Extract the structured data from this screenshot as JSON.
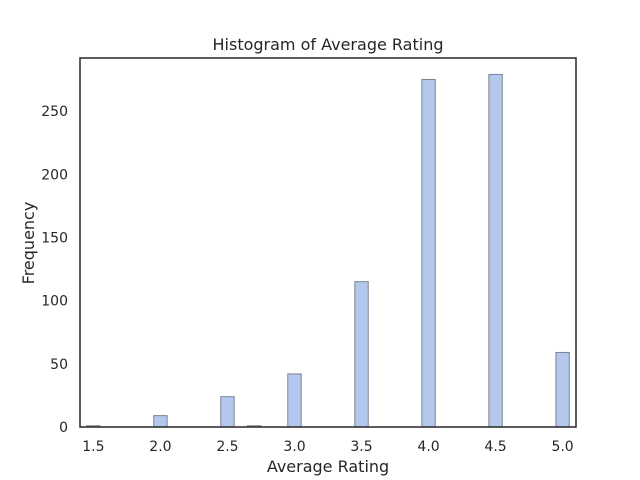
{
  "chart_data": {
    "type": "bar",
    "title": "Histogram of Average Rating",
    "xlabel": "Average Rating",
    "ylabel": "Frequency",
    "xlim": [
      1.4,
      5.1
    ],
    "ylim": [
      0,
      292
    ],
    "x_ticks": [
      "1.5",
      "2.0",
      "2.5",
      "3.0",
      "3.5",
      "4.0",
      "4.5",
      "5.0"
    ],
    "y_ticks": [
      "0",
      "50",
      "100",
      "150",
      "200",
      "250"
    ],
    "bin_width": 0.1,
    "series": [
      {
        "x": [
          1.5,
          2.0,
          2.5,
          2.7,
          3.0,
          3.5,
          4.0,
          4.5,
          5.0
        ],
        "values": [
          1,
          9,
          24,
          1,
          42,
          115,
          275,
          279,
          59
        ]
      }
    ],
    "colors": {
      "bar_fill": "#b4c7ec",
      "bar_edge": "#7a8293",
      "axis": "#262626"
    },
    "grid": false,
    "legend": "none"
  }
}
